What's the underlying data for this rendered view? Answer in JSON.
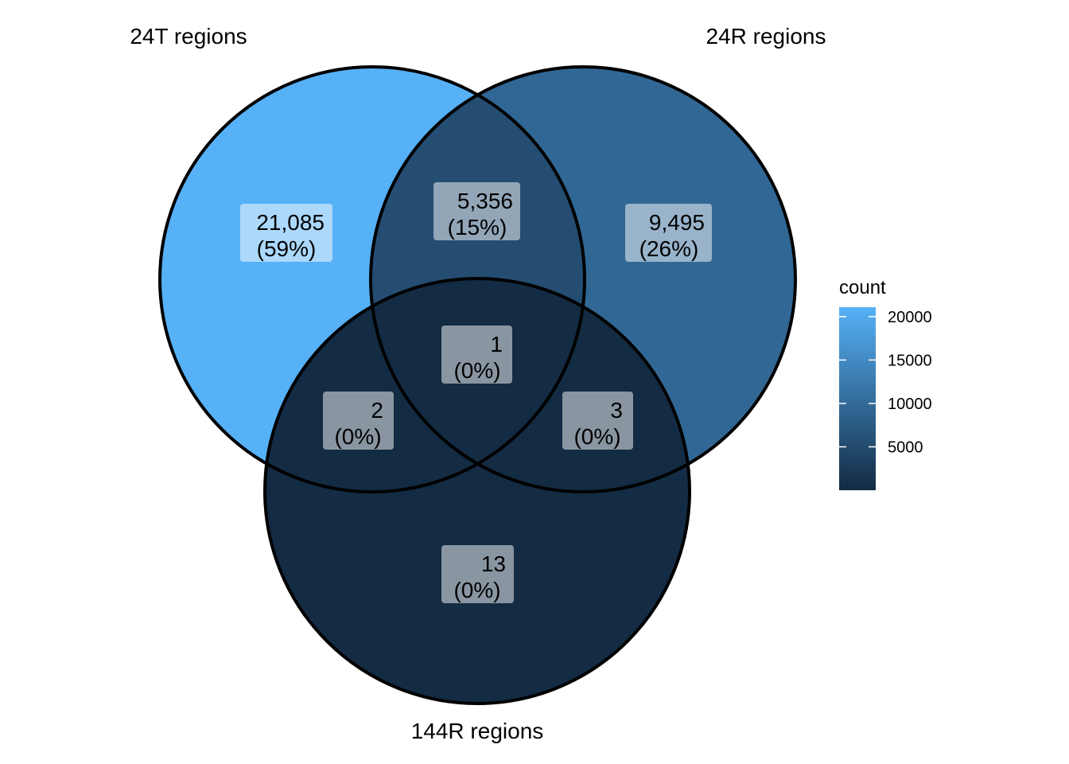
{
  "chart_data": {
    "type": "venn",
    "sets": [
      "24T regions",
      "24R regions",
      "144R regions"
    ],
    "regions": [
      {
        "sets": [
          "24T regions"
        ],
        "count": 21085,
        "count_label": "21,085",
        "percent_label": "(59%)"
      },
      {
        "sets": [
          "24T regions",
          "24R regions"
        ],
        "count": 5356,
        "count_label": "5,356",
        "percent_label": "(15%)"
      },
      {
        "sets": [
          "24R regions"
        ],
        "count": 9495,
        "count_label": "9,495",
        "percent_label": "(26%)"
      },
      {
        "sets": [
          "24T regions",
          "24R regions",
          "144R regions"
        ],
        "count": 1,
        "count_label": "1",
        "percent_label": "(0%)"
      },
      {
        "sets": [
          "24T regions",
          "144R regions"
        ],
        "count": 2,
        "count_label": "2",
        "percent_label": "(0%)"
      },
      {
        "sets": [
          "24R regions",
          "144R regions"
        ],
        "count": 3,
        "count_label": "3",
        "percent_label": "(0%)"
      },
      {
        "sets": [
          "144R regions"
        ],
        "count": 13,
        "count_label": "13",
        "percent_label": "(0%)"
      }
    ],
    "legend": {
      "title": "count",
      "ticks": [
        20000,
        15000,
        10000,
        5000
      ],
      "range": [
        1,
        21085
      ],
      "color_low": "#132B43",
      "color_high": "#56B1F7",
      "position": "right"
    },
    "label_box_color": "#FFFFFF",
    "outline_color": "#000000"
  }
}
